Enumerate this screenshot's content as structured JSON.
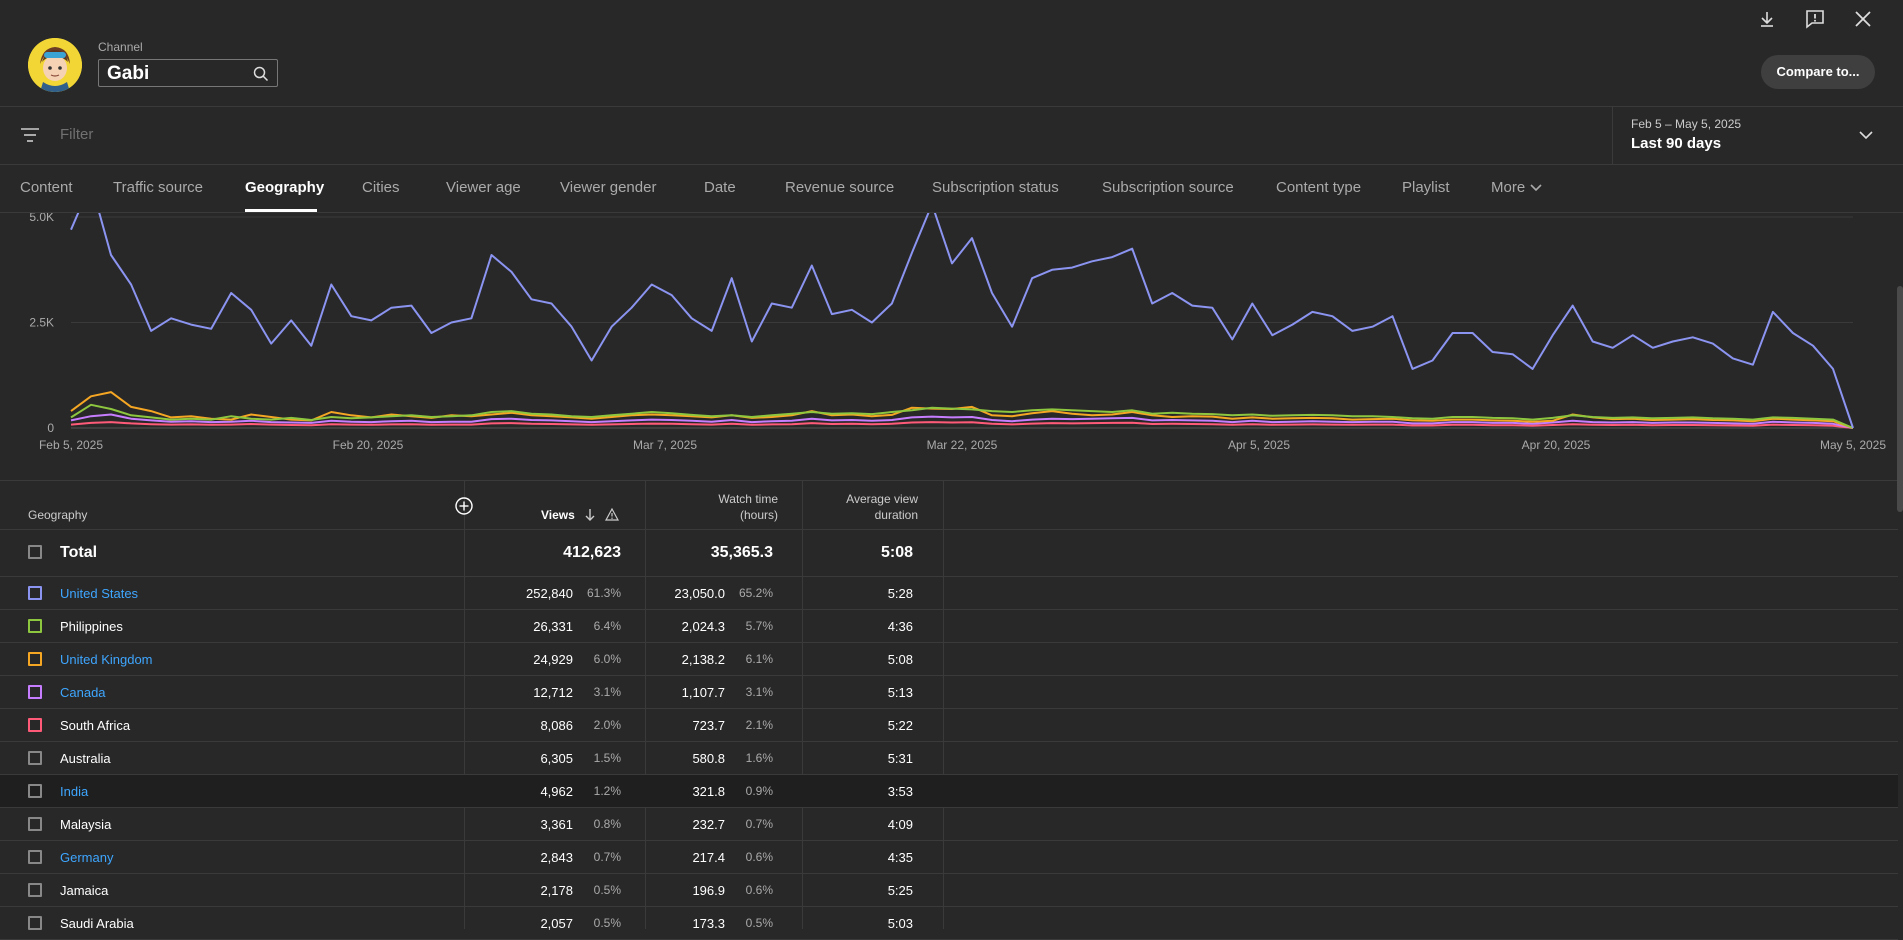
{
  "header": {
    "channel_label": "Channel",
    "channel_value": "Gabi",
    "compare_button": "Compare to..."
  },
  "filter": {
    "placeholder": "Filter",
    "date_sub": "Feb 5 – May 5, 2025",
    "date_main": "Last 90 days"
  },
  "tabs": [
    "Content",
    "Traffic source",
    "Geography",
    "Cities",
    "Viewer age",
    "Viewer gender",
    "Date",
    "Revenue source",
    "Subscription status",
    "Subscription source",
    "Content type",
    "Playlist",
    "More"
  ],
  "active_tab": "Geography",
  "table": {
    "headers": {
      "geography": "Geography",
      "views": "Views",
      "watch_time_1": "Watch time",
      "watch_time_2": "(hours)",
      "avg_1": "Average view",
      "avg_2": "duration"
    },
    "total": {
      "label": "Total",
      "views": "412,623",
      "watch": "35,365.3",
      "avg": "5:08"
    },
    "rows": [
      {
        "name": "United States",
        "link": true,
        "color": "#8b94f0",
        "views": "252,840",
        "views_pct": "61.3%",
        "watch": "23,050.0",
        "watch_pct": "65.2%",
        "avg": "5:28"
      },
      {
        "name": "Philippines",
        "link": false,
        "color": "#8dc63f",
        "views": "26,331",
        "views_pct": "6.4%",
        "watch": "2,024.3",
        "watch_pct": "5.7%",
        "avg": "4:36"
      },
      {
        "name": "United Kingdom",
        "link": true,
        "color": "#f5a623",
        "views": "24,929",
        "views_pct": "6.0%",
        "watch": "2,138.2",
        "watch_pct": "6.1%",
        "avg": "5:08"
      },
      {
        "name": "Canada",
        "link": true,
        "color": "#c77dff",
        "views": "12,712",
        "views_pct": "3.1%",
        "watch": "1,107.7",
        "watch_pct": "3.1%",
        "avg": "5:13"
      },
      {
        "name": "South Africa",
        "link": false,
        "color": "#ff5b79",
        "views": "8,086",
        "views_pct": "2.0%",
        "watch": "723.7",
        "watch_pct": "2.1%",
        "avg": "5:22"
      },
      {
        "name": "Australia",
        "link": false,
        "color": "#888888",
        "views": "6,305",
        "views_pct": "1.5%",
        "watch": "580.8",
        "watch_pct": "1.6%",
        "avg": "5:31"
      },
      {
        "name": "India",
        "link": true,
        "color": "#888888",
        "views": "4,962",
        "views_pct": "1.2%",
        "watch": "321.8",
        "watch_pct": "0.9%",
        "avg": "3:53",
        "highlight": true
      },
      {
        "name": "Malaysia",
        "link": false,
        "color": "#888888",
        "views": "3,361",
        "views_pct": "0.8%",
        "watch": "232.7",
        "watch_pct": "0.7%",
        "avg": "4:09"
      },
      {
        "name": "Germany",
        "link": true,
        "color": "#888888",
        "views": "2,843",
        "views_pct": "0.7%",
        "watch": "217.4",
        "watch_pct": "0.6%",
        "avg": "4:35"
      },
      {
        "name": "Jamaica",
        "link": false,
        "color": "#888888",
        "views": "2,178",
        "views_pct": "0.5%",
        "watch": "196.9",
        "watch_pct": "0.6%",
        "avg": "5:25"
      },
      {
        "name": "Saudi Arabia",
        "link": false,
        "color": "#888888",
        "views": "2,057",
        "views_pct": "0.5%",
        "watch": "173.3",
        "watch_pct": "0.5%",
        "avg": "5:03"
      }
    ]
  },
  "chart_data": {
    "type": "line",
    "y_ticks": [
      "0",
      "2.5K",
      "5.0K"
    ],
    "ylim": [
      0,
      5000
    ],
    "x_ticks": [
      "Feb 5, 2025",
      "Feb 20, 2025",
      "Mar 7, 2025",
      "Mar 22, 2025",
      "Apr 5, 2025",
      "Apr 20, 2025",
      "May 5, 2025"
    ],
    "grid": true,
    "series": [
      {
        "name": "United States",
        "color": "#8b94f0",
        "values": [
          4700,
          5800,
          4100,
          3400,
          2300,
          2600,
          2450,
          2350,
          3200,
          2800,
          2000,
          2550,
          1950,
          3400,
          2650,
          2550,
          2850,
          2900,
          2250,
          2500,
          2600,
          4100,
          3700,
          3050,
          2950,
          2400,
          1600,
          2400,
          2850,
          3400,
          3150,
          2600,
          2300,
          3550,
          2050,
          2950,
          2850,
          3850,
          2700,
          2800,
          2500,
          2950,
          4150,
          5300,
          3900,
          4500,
          3200,
          2400,
          3550,
          3750,
          3800,
          3950,
          4050,
          4250,
          2950,
          3200,
          2900,
          2850,
          2100,
          2950,
          2200,
          2450,
          2750,
          2650,
          2300,
          2400,
          2650,
          1400,
          1600,
          2250,
          2250,
          1800,
          1750,
          1400,
          2200,
          2900,
          2050,
          1900,
          2200,
          1900,
          2050,
          2150,
          2000,
          1650,
          1500,
          2750,
          2250,
          1950,
          1400,
          0
        ]
      },
      {
        "name": "Philippines",
        "color": "#8dc63f",
        "values": [
          250,
          550,
          450,
          300,
          250,
          200,
          220,
          200,
          280,
          220,
          200,
          240,
          190,
          260,
          230,
          250,
          280,
          300,
          260,
          280,
          300,
          380,
          400,
          340,
          320,
          280,
          260,
          300,
          340,
          380,
          350,
          310,
          280,
          300,
          260,
          300,
          340,
          380,
          340,
          350,
          330,
          380,
          420,
          480,
          460,
          440,
          400,
          380,
          420,
          440,
          420,
          400,
          380,
          420,
          340,
          360,
          340,
          330,
          300,
          320,
          290,
          300,
          310,
          300,
          280,
          280,
          260,
          230,
          220,
          260,
          260,
          240,
          230,
          200,
          240,
          300,
          260,
          240,
          250,
          230,
          240,
          250,
          230,
          220,
          200,
          250,
          240,
          220,
          200,
          0
        ]
      },
      {
        "name": "United Kingdom",
        "color": "#f5a623",
        "values": [
          400,
          750,
          850,
          500,
          400,
          250,
          280,
          220,
          200,
          320,
          260,
          200,
          180,
          380,
          300,
          250,
          320,
          280,
          240,
          300,
          280,
          320,
          360,
          300,
          280,
          250,
          220,
          260,
          300,
          320,
          300,
          280,
          250,
          300,
          240,
          260,
          300,
          400,
          300,
          320,
          280,
          310,
          480,
          460,
          450,
          500,
          300,
          280,
          350,
          400,
          340,
          300,
          320,
          380,
          300,
          260,
          280,
          270,
          220,
          250,
          220,
          230,
          240,
          230,
          200,
          210,
          220,
          180,
          170,
          200,
          200,
          180,
          170,
          150,
          170,
          320,
          250,
          210,
          220,
          190,
          200,
          210,
          190,
          180,
          160,
          220,
          200,
          180,
          160,
          0
        ]
      },
      {
        "name": "Canada",
        "color": "#c77dff",
        "values": [
          180,
          280,
          320,
          220,
          180,
          150,
          160,
          140,
          150,
          170,
          140,
          130,
          120,
          170,
          150,
          140,
          160,
          170,
          140,
          150,
          150,
          210,
          220,
          190,
          180,
          160,
          140,
          160,
          180,
          200,
          190,
          170,
          150,
          190,
          140,
          160,
          170,
          220,
          180,
          190,
          170,
          190,
          250,
          270,
          250,
          260,
          190,
          160,
          200,
          220,
          210,
          220,
          230,
          240,
          180,
          190,
          180,
          170,
          140,
          170,
          140,
          150,
          160,
          150,
          140,
          150,
          150,
          110,
          110,
          140,
          140,
          120,
          120,
          100,
          130,
          170,
          140,
          130,
          140,
          120,
          130,
          130,
          120,
          110,
          100,
          150,
          130,
          120,
          100,
          0
        ]
      },
      {
        "name": "South Africa",
        "color": "#ff5b79",
        "values": [
          80,
          120,
          140,
          110,
          90,
          80,
          85,
          75,
          80,
          95,
          80,
          70,
          65,
          90,
          80,
          75,
          85,
          90,
          75,
          80,
          80,
          110,
          115,
          100,
          95,
          85,
          75,
          85,
          95,
          105,
          100,
          90,
          80,
          100,
          75,
          85,
          90,
          115,
          95,
          100,
          90,
          100,
          130,
          140,
          130,
          135,
          100,
          85,
          105,
          115,
          110,
          115,
          120,
          125,
          95,
          100,
          95,
          90,
          75,
          90,
          75,
          80,
          85,
          80,
          75,
          80,
          80,
          60,
          60,
          75,
          75,
          65,
          65,
          55,
          70,
          90,
          75,
          70,
          75,
          65,
          70,
          70,
          65,
          60,
          55,
          80,
          70,
          65,
          55,
          0
        ]
      }
    ]
  }
}
